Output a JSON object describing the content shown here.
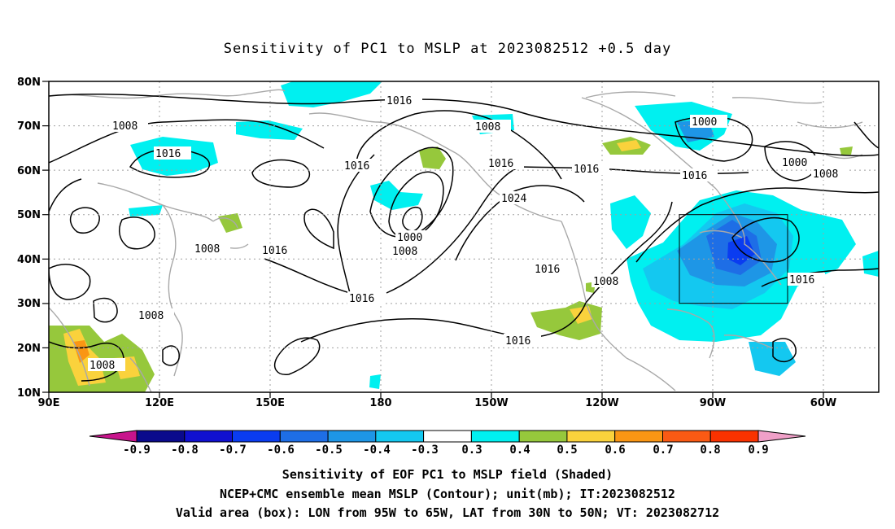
{
  "title": "Sensitivity of PC1 to MSLP at 2023082512 +0.5 day",
  "axes": {
    "lat_labels": [
      "80N",
      "70N",
      "60N",
      "50N",
      "40N",
      "30N",
      "20N",
      "10N"
    ],
    "lon_labels": [
      "90E",
      "120E",
      "150E",
      "180",
      "150W",
      "120W",
      "90W",
      "60W"
    ]
  },
  "contour_labels": [
    "1016",
    "1008",
    "1016",
    "1008",
    "1016",
    "1016",
    "1024",
    "1000",
    "1008",
    "1016",
    "1008",
    "1016",
    "1016",
    "1008",
    "1016",
    "1000",
    "1000",
    "1008",
    "1016",
    "1016",
    "1008",
    "1008",
    "1016"
  ],
  "valid_box": {
    "lon_from": "95W",
    "lon_to": "65W",
    "lat_from": "30N",
    "lat_to": "50N"
  },
  "colorbar": {
    "labels": [
      "-0.9",
      "-0.8",
      "-0.7",
      "-0.6",
      "-0.5",
      "-0.4",
      "-0.3",
      "0.3",
      "0.4",
      "0.5",
      "0.6",
      "0.7",
      "0.8",
      "0.9"
    ],
    "colors": [
      "#0a0a8c",
      "#1010d0",
      "#0a3cf0",
      "#1e6ee6",
      "#1e96e6",
      "#14c8f0",
      "#00f0f0",
      "#ffffff",
      "#96c83c",
      "#fad23c",
      "#fa9614",
      "#fa5a14",
      "#fa3200",
      "#f00000"
    ],
    "low_end_color": "#c8148c",
    "high_end_color": "#f0a0c8"
  },
  "captions": {
    "line1": "Sensitivity of EOF PC1 to MSLP field (Shaded)",
    "line2": "NCEP+CMC ensemble mean MSLP (Contour); unit(mb); IT:2023082512",
    "line3": "Valid area (box): LON from 95W to 65W, LAT from 30N to 50N; VT: 2023082712"
  }
}
